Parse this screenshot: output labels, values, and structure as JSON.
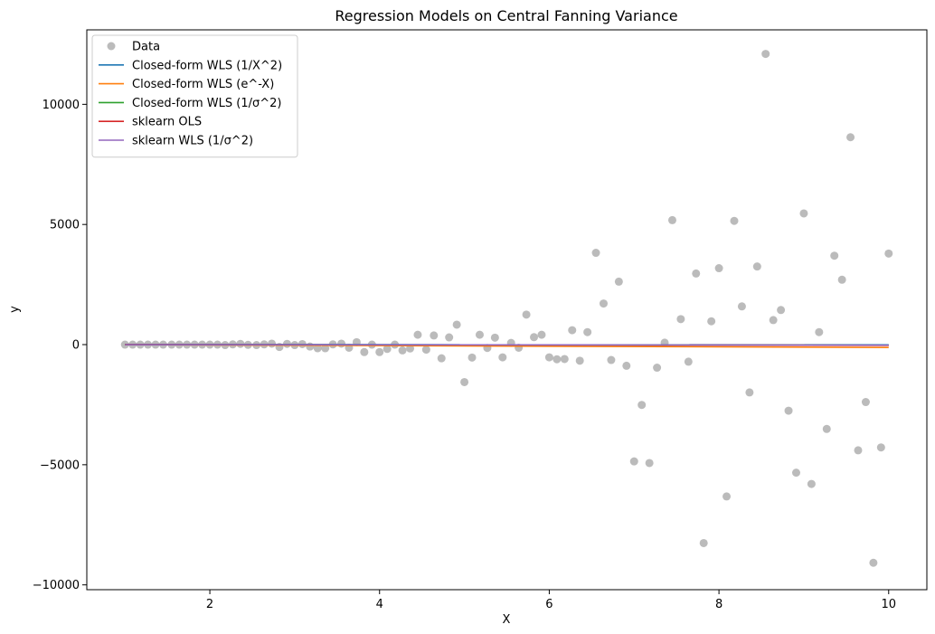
{
  "chart_data": {
    "type": "scatter",
    "title": "Regression Models on Central Fanning Variance",
    "xlabel": "X",
    "ylabel": "y",
    "xlim": [
      0.55,
      10.45
    ],
    "ylim": [
      -10200,
      13100
    ],
    "xticks": [
      2,
      4,
      6,
      8,
      10
    ],
    "yticks": [
      -10000,
      -5000,
      0,
      5000,
      10000
    ],
    "grid": false,
    "legend_position": "top-left",
    "scatter": {
      "name": "Data",
      "color": "#aaaaaa",
      "x": [
        1.0,
        1.09,
        1.18,
        1.27,
        1.36,
        1.45,
        1.55,
        1.64,
        1.73,
        1.82,
        1.91,
        2.0,
        2.09,
        2.18,
        2.27,
        2.36,
        2.45,
        2.55,
        2.64,
        2.73,
        2.82,
        2.91,
        3.0,
        3.09,
        3.18,
        3.27,
        3.36,
        3.45,
        3.55,
        3.64,
        3.73,
        3.82,
        3.91,
        4.0,
        4.09,
        4.18,
        4.27,
        4.36,
        4.45,
        4.55,
        4.64,
        4.73,
        4.82,
        4.91,
        5.0,
        5.09,
        5.18,
        5.27,
        5.36,
        5.45,
        5.55,
        5.64,
        5.73,
        5.82,
        5.91,
        6.0,
        6.09,
        6.18,
        6.27,
        6.36,
        6.45,
        6.55,
        6.64,
        6.73,
        6.82,
        6.91,
        7.0,
        7.09,
        7.18,
        7.27,
        7.36,
        7.45,
        7.55,
        7.64,
        7.73,
        7.82,
        7.91,
        8.0,
        8.09,
        8.18,
        8.27,
        8.36,
        8.45,
        8.55,
        8.64,
        8.73,
        8.82,
        8.91,
        9.0,
        9.09,
        9.18,
        9.27,
        9.36,
        9.45,
        9.55,
        9.64,
        9.73,
        9.82,
        9.91,
        10.0
      ],
      "y": [
        0,
        0,
        0,
        0,
        0,
        0,
        0,
        0,
        0,
        0,
        0,
        0,
        0,
        -20,
        10,
        30,
        -10,
        -20,
        10,
        40,
        -100,
        30,
        -20,
        20,
        -80,
        -150,
        -150,
        10,
        40,
        -130,
        100,
        -310,
        0,
        -310,
        -180,
        0,
        -240,
        -160,
        410,
        -210,
        380,
        -570,
        300,
        830,
        -1560,
        -540,
        410,
        -140,
        290,
        -530,
        70,
        -130,
        1250,
        310,
        410,
        -530,
        -610,
        -600,
        600,
        -670,
        520,
        3820,
        1710,
        -640,
        2620,
        -880,
        -4860,
        -2510,
        -4930,
        -960,
        80,
        5180,
        1060,
        -710,
        2960,
        -8260,
        970,
        3180,
        -6320,
        5150,
        1590,
        -1990,
        3250,
        12100,
        1020,
        1440,
        -2750,
        -5330,
        5460,
        -5800,
        520,
        -3510,
        3700,
        2700,
        8630,
        -4400,
        -2390,
        -9080,
        -4280,
        3790
      ]
    },
    "series": [
      {
        "name": "Closed-form WLS (1/X^2)",
        "color": "#1f77b4",
        "x": [
          1,
          10
        ],
        "y": [
          0,
          -10
        ]
      },
      {
        "name": "Closed-form WLS (e^-X)",
        "color": "#ff7f0e",
        "x": [
          1,
          10
        ],
        "y": [
          0,
          -120
        ]
      },
      {
        "name": "Closed-form WLS (1/σ^2)",
        "color": "#2ca02c",
        "x": [
          1,
          10
        ],
        "y": [
          0,
          -20
        ]
      },
      {
        "name": "sklearn OLS",
        "color": "#d62728",
        "x": [
          1,
          10
        ],
        "y": [
          0,
          -30
        ]
      },
      {
        "name": "sklearn WLS (1/σ^2)",
        "color": "#9467bd",
        "x": [
          1,
          10
        ],
        "y": [
          0,
          -20
        ]
      }
    ]
  }
}
